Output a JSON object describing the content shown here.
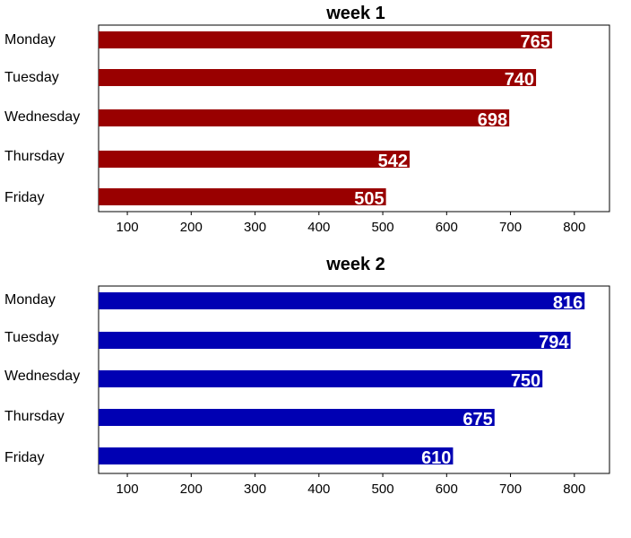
{
  "chart_data": [
    {
      "type": "bar",
      "orientation": "horizontal",
      "title": "week 1",
      "categories": [
        "Monday",
        "Tuesday",
        "Wednesday",
        "Thursday",
        "Friday"
      ],
      "values": [
        765,
        740,
        698,
        542,
        505
      ],
      "data_labels": [
        "765",
        "740",
        "698",
        "542",
        "505"
      ],
      "xticks": [
        "100",
        "200",
        "300",
        "400",
        "500",
        "600",
        "700",
        "800"
      ],
      "xlim": [
        55,
        855
      ],
      "color": "#990000",
      "grid": false
    },
    {
      "type": "bar",
      "orientation": "horizontal",
      "title": "week 2",
      "categories": [
        "Monday",
        "Tuesday",
        "Wednesday",
        "Thursday",
        "Friday"
      ],
      "values": [
        816,
        794,
        750,
        675,
        610
      ],
      "data_labels": [
        "816",
        "794",
        "750",
        "675",
        "610"
      ],
      "xticks": [
        "100",
        "200",
        "300",
        "400",
        "500",
        "600",
        "700",
        "800"
      ],
      "xlim": [
        55,
        855
      ],
      "color": "#0000b3",
      "grid": false
    }
  ]
}
